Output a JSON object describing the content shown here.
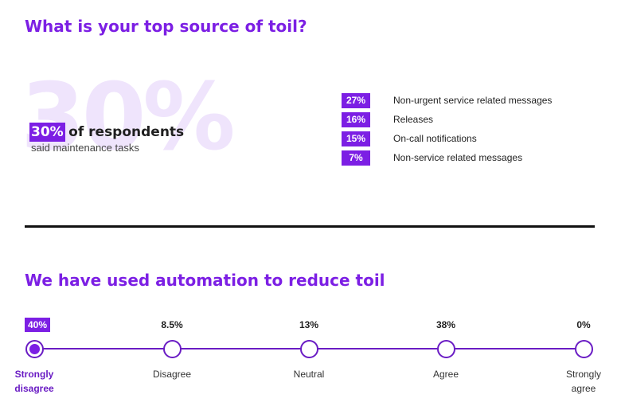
{
  "section1": {
    "title": "What is your top source of toil?",
    "watermark": "30%",
    "headline_value": "30%",
    "headline_text": "of respondents",
    "subtext": "said maintenance tasks"
  },
  "section2": {
    "title": "We have used automation to reduce toil"
  },
  "colors": {
    "accent": "#7c1fe4",
    "watermark": "#efe4fc",
    "track": "#6a1cc4"
  },
  "chart_data": [
    {
      "type": "bar",
      "title": "What is your top source of toil?",
      "categories": [
        "maintenance tasks",
        "Non-urgent service related messages",
        "Releases",
        "On-call notifications",
        "Non-service related messages"
      ],
      "values": [
        30,
        27,
        16,
        15,
        7
      ],
      "labels": [
        "30%",
        "27%",
        "16%",
        "15%",
        "7%"
      ],
      "unit": "%"
    },
    {
      "type": "scatter",
      "title": "We have used automation to reduce toil",
      "categories": [
        "Strongly disagree",
        "Disagree",
        "Neutral",
        "Agree",
        "Strongly agree"
      ],
      "values": [
        40,
        8.5,
        13,
        38,
        0
      ],
      "labels": [
        "40%",
        "8.5%",
        "13%",
        "38%",
        "0%"
      ],
      "selected_index": 0,
      "unit": "%"
    }
  ]
}
